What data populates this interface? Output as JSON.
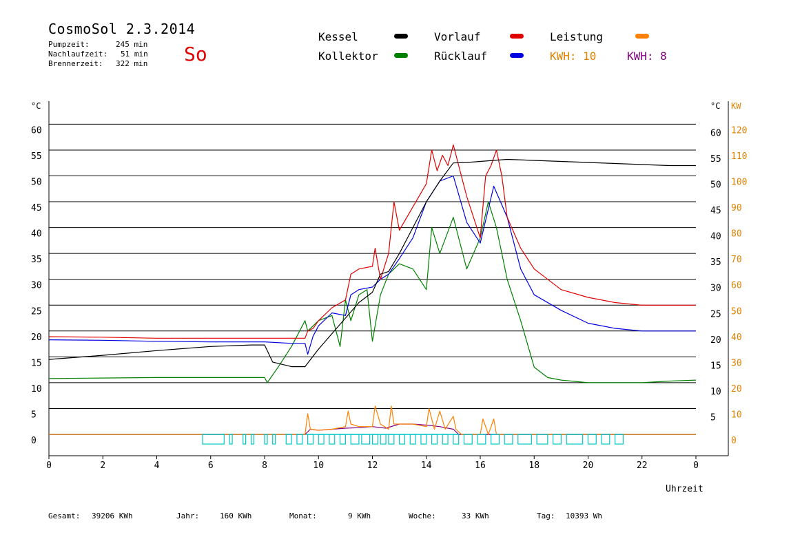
{
  "header": {
    "title": "CosmoSol 2.3.2014",
    "weekday": "So",
    "stats": [
      {
        "label": "Pumpzeit:",
        "value": "245 min"
      },
      {
        "label": "Nachlaufzeit:",
        "value": "51 min"
      },
      {
        "label": "Brennerzeit:",
        "value": "322 min"
      }
    ]
  },
  "legend": {
    "items": [
      {
        "label": "Kessel",
        "color": "#000000"
      },
      {
        "label": "Vorlauf",
        "color": "#e00000"
      },
      {
        "label": "Leistung",
        "color": "#ff8000"
      },
      {
        "label": "Kollektor",
        "color": "#008000"
      },
      {
        "label": "Rücklauf",
        "color": "#0000e0"
      }
    ],
    "kwh1": {
      "text": "KWH: 10",
      "color": "#e08000"
    },
    "kwh2": {
      "text": "KWH: 8",
      "color": "#800080"
    }
  },
  "footer": [
    {
      "label": "Gesamt:",
      "value": "39206 KWh"
    },
    {
      "label": "Jahr:",
      "value": "160 KWh"
    },
    {
      "label": "Monat:",
      "value": "9 KWh"
    },
    {
      "label": "Woche:",
      "value": "33 KWh"
    },
    {
      "label": "Tag:",
      "value": "10393 Wh"
    }
  ],
  "chart_data": {
    "type": "line",
    "xlabel": "Uhrzeit",
    "ylabel_left": "°C",
    "ylabel_right_c": "°C",
    "ylabel_right_kw": "KW",
    "x_ticks": [
      "0",
      "2",
      "4",
      "6",
      "8",
      "10",
      "12",
      "14",
      "16",
      "18",
      "20",
      "22",
      "0"
    ],
    "xlim": [
      0,
      24
    ],
    "ylim": [
      0,
      65
    ],
    "y_ticks_left": [
      "0",
      "5",
      "10",
      "15",
      "20",
      "25",
      "30",
      "35",
      "40",
      "45",
      "50",
      "55",
      "60"
    ],
    "y_ticks_right_c": [
      "5",
      "10",
      "15",
      "20",
      "25",
      "30",
      "35",
      "40",
      "45",
      "50",
      "55",
      "60"
    ],
    "y_ticks_right_kw": [
      "0",
      "10",
      "20",
      "30",
      "40",
      "50",
      "60",
      "70",
      "80",
      "90",
      "100",
      "110",
      "120"
    ],
    "grid": true,
    "colors": {
      "kessel": "#000000",
      "vorlauf": "#e00000",
      "ruecklauf": "#0000e0",
      "kollektor": "#008000",
      "leistung": "#ff8000",
      "leistung2": "#800080",
      "pump": "#00c8c8"
    },
    "series": [
      {
        "name": "Kessel",
        "key": "kessel",
        "x": [
          0,
          2,
          4,
          6,
          7.5,
          8,
          8.3,
          9,
          9.5,
          10,
          10.5,
          11,
          11.5,
          12,
          12.3,
          12.6,
          13,
          13.5,
          14,
          14.5,
          15,
          15.5,
          16,
          16.5,
          17,
          18,
          19,
          20,
          21,
          22,
          23,
          24
        ],
        "y": [
          14.5,
          15.3,
          16.2,
          17,
          17.3,
          17.3,
          14,
          13.1,
          13.1,
          16.5,
          19.5,
          22.5,
          25.5,
          27.5,
          31,
          31.5,
          35,
          40,
          45,
          49,
          52.5,
          52.6,
          52.8,
          53,
          53.2,
          53,
          52.8,
          52.6,
          52.4,
          52.2,
          52,
          52
        ]
      },
      {
        "name": "Vorlauf",
        "key": "vorlauf",
        "x": [
          0,
          2,
          4,
          6,
          8,
          9,
          9.5,
          9.6,
          9.8,
          10,
          10.5,
          11,
          11.2,
          11.5,
          12,
          12.1,
          12.3,
          12.6,
          12.8,
          13,
          13.5,
          14,
          14.2,
          14.4,
          14.6,
          14.8,
          15,
          15.2,
          15.5,
          16,
          16.2,
          16.4,
          16.6,
          16.8,
          17,
          17.5,
          18,
          19,
          20,
          21,
          22,
          23,
          24
        ],
        "y": [
          18.9,
          18.8,
          18.6,
          18.6,
          18.6,
          18.6,
          18.6,
          20,
          20.5,
          22,
          24.5,
          26,
          31,
          32,
          32.5,
          36,
          30,
          35,
          45,
          39.5,
          44,
          48.5,
          55,
          51,
          54,
          52,
          56,
          52,
          46,
          38,
          50,
          52,
          55,
          50,
          42,
          36,
          32,
          28,
          26.5,
          25.5,
          25,
          25,
          25
        ]
      },
      {
        "name": "Rücklauf",
        "key": "ruecklauf",
        "x": [
          0,
          2,
          4,
          6,
          8,
          9,
          9.5,
          9.6,
          9.8,
          10,
          10.5,
          11,
          11.2,
          11.5,
          12,
          12.3,
          12.6,
          13,
          13.5,
          14,
          14.5,
          15,
          15.5,
          16,
          16.5,
          17,
          17.5,
          18,
          19,
          20,
          21,
          22,
          23,
          24
        ],
        "y": [
          18.3,
          18.2,
          18,
          17.9,
          17.9,
          17.6,
          17.6,
          15.5,
          19,
          21,
          23.5,
          23,
          27,
          28,
          28.5,
          30,
          31,
          34,
          38,
          45,
          49,
          50,
          41,
          37,
          48,
          42,
          32,
          27,
          24,
          21.5,
          20.5,
          20,
          20,
          20
        ]
      },
      {
        "name": "Kollektor",
        "key": "kollektor",
        "x": [
          0,
          2,
          4,
          5,
          6,
          7,
          8,
          8.1,
          8.5,
          9,
          9.5,
          9.6,
          10,
          10.5,
          10.8,
          11,
          11.2,
          11.5,
          11.8,
          12,
          12.3,
          12.6,
          13,
          13.5,
          14,
          14.2,
          14.5,
          15,
          15.5,
          16,
          16.3,
          16.6,
          17,
          17.5,
          18,
          18.5,
          19,
          20,
          21,
          22,
          23,
          24
        ],
        "y": [
          10.8,
          10.9,
          11,
          11,
          11,
          11,
          11,
          10,
          13,
          17,
          22,
          20,
          22,
          23,
          17,
          26,
          22,
          27,
          28,
          18,
          27,
          31,
          33,
          32,
          28,
          40,
          35,
          42,
          32,
          38,
          45,
          40,
          30,
          22,
          13,
          11,
          10.5,
          10,
          10,
          10,
          10.3,
          10.5
        ]
      },
      {
        "name": "Leistung",
        "key": "leistung",
        "x": [
          0,
          9.5,
          9.6,
          9.7,
          10,
          10.5,
          11,
          11.1,
          11.2,
          11.5,
          12,
          12.1,
          12.3,
          12.6,
          12.7,
          12.8,
          13,
          13.5,
          14,
          14.1,
          14.3,
          14.5,
          14.7,
          15,
          15.1,
          15.3,
          15.5,
          16,
          16.1,
          16.3,
          16.5,
          16.6,
          16.8,
          24
        ],
        "y": [
          0,
          0,
          4,
          1,
          0.8,
          1,
          1.5,
          4.5,
          2,
          1.5,
          1.5,
          5.5,
          2,
          1,
          5.5,
          2,
          2,
          2,
          1.5,
          5,
          1,
          4.5,
          1,
          3.5,
          1,
          0,
          0,
          0,
          3,
          0,
          3,
          0,
          0,
          0
        ]
      },
      {
        "name": "Leistung2",
        "key": "leistung2",
        "x": [
          0,
          9.5,
          9.7,
          10,
          10.5,
          11,
          11.5,
          12,
          12.5,
          13,
          13.5,
          14,
          14.5,
          15,
          15.2,
          24
        ],
        "y": [
          0,
          0,
          1,
          0.8,
          1,
          1.2,
          1.3,
          1.5,
          1.2,
          2,
          2,
          1.8,
          1.5,
          1,
          0,
          0
        ]
      },
      {
        "name": "Pumpe",
        "key": "pump",
        "x": [
          5.7,
          6.5,
          6.7,
          6.8,
          7.2,
          7.3,
          7.5,
          7.6,
          8,
          8.1,
          8.3,
          8.4,
          8.8,
          9.0,
          9.2,
          9.4,
          9.6,
          9.8,
          10,
          10.2,
          10.4,
          10.6,
          10.8,
          11,
          11.2,
          11.5,
          11.6,
          11.9,
          12,
          12.2,
          12.3,
          12.5,
          12.6,
          12.8,
          13,
          13.2,
          13.4,
          13.6,
          13.8,
          14,
          14.2,
          14.4,
          14.6,
          14.8,
          15,
          15.2,
          15.4,
          15.7,
          15.9,
          16.2,
          16.4,
          16.7,
          16.9,
          17.2,
          17.4,
          17.9,
          18.1,
          18.5,
          18.7,
          19,
          19.2,
          19.8,
          20,
          20.3,
          20.5,
          20.8,
          21,
          21.3,
          21.5
        ],
        "on": [
          1,
          0,
          1,
          0,
          1,
          0,
          1,
          0,
          1,
          0,
          1,
          0,
          1,
          0,
          1,
          0,
          1,
          0,
          1,
          0,
          1,
          0,
          1,
          0,
          1,
          0,
          1,
          0,
          1,
          0,
          1,
          0,
          1,
          0,
          1,
          0,
          1,
          0,
          1,
          0,
          1,
          0,
          1,
          0,
          1,
          0,
          1,
          0,
          1,
          0,
          1,
          0,
          1,
          0,
          1,
          0,
          1,
          0,
          1,
          0,
          1,
          0,
          1,
          0,
          1,
          0,
          1,
          0,
          1
        ]
      }
    ]
  }
}
